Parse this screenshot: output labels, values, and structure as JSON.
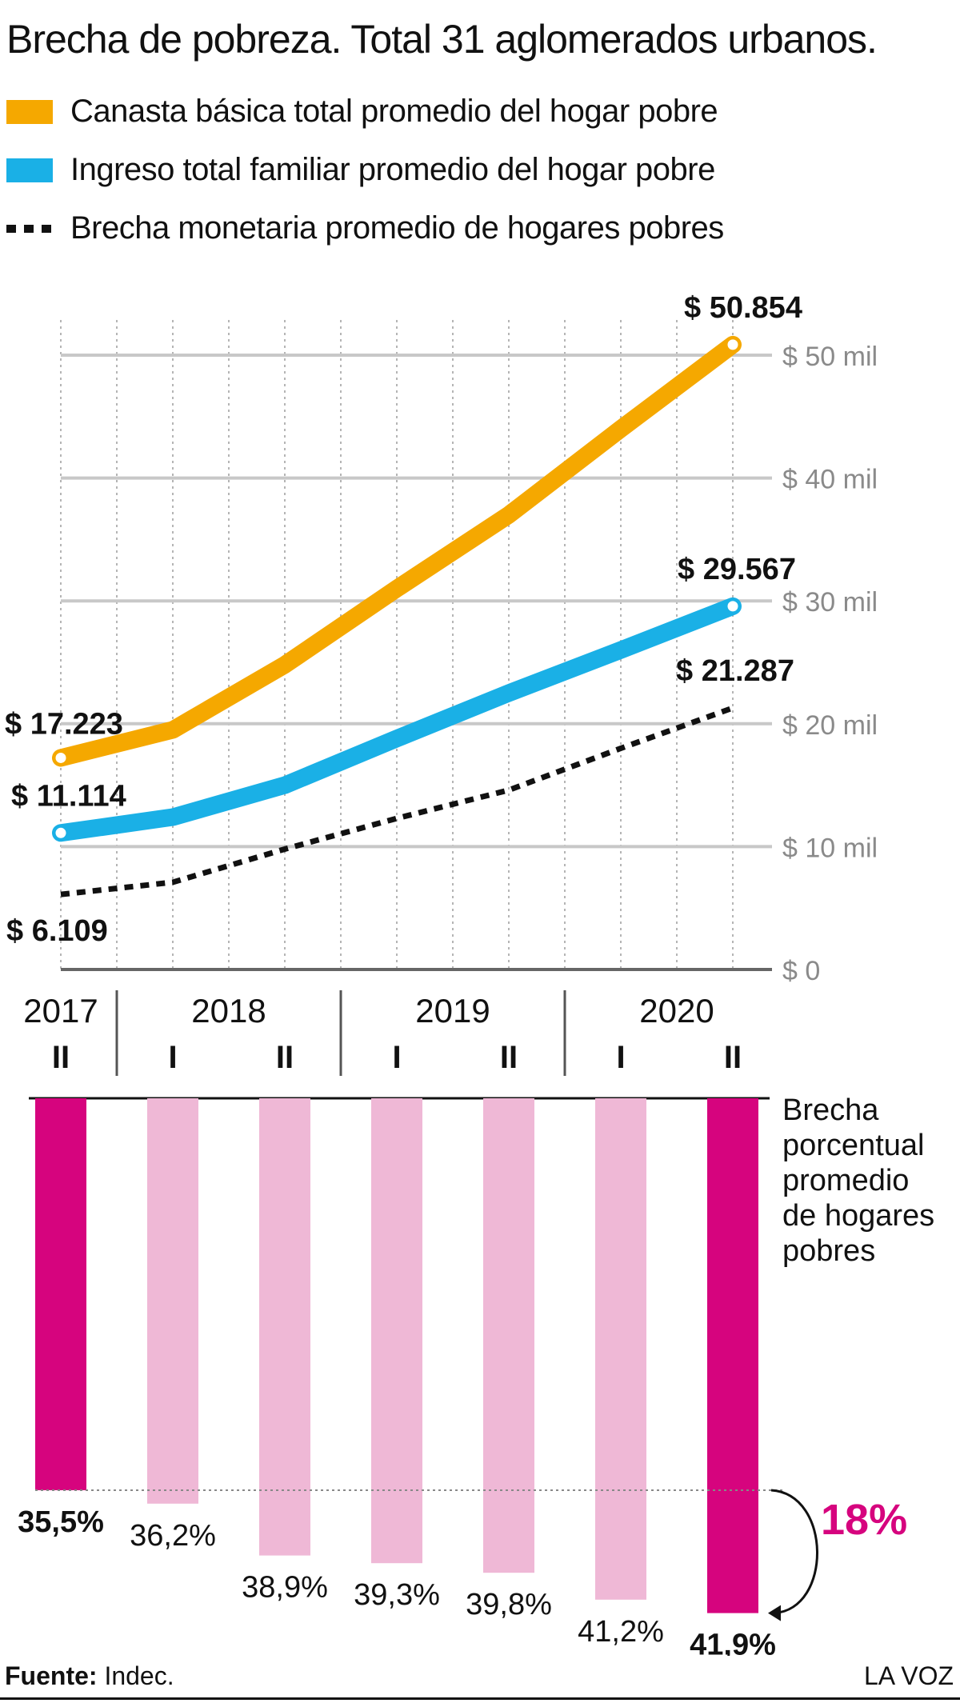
{
  "title": "Brecha de pobreza. Total 31 aglomerados urbanos.",
  "legend": [
    {
      "label": "Canasta básica total promedio del hogar pobre",
      "color": "#F5A800",
      "style": "solid"
    },
    {
      "label": "Ingreso total familiar promedio del hogar pobre",
      "color": "#1AB0E6",
      "style": "solid"
    },
    {
      "label": "Brecha monetaria promedio de hogares pobres",
      "color": "#111111",
      "style": "dashed"
    }
  ],
  "chart_data": [
    {
      "type": "line",
      "x": [
        "2017-II",
        "2018-I",
        "2018-II",
        "2019-I",
        "2019-II",
        "2020-I",
        "2020-II"
      ],
      "years": [
        "2017",
        "2018",
        "2019",
        "2020"
      ],
      "semesters": [
        "II",
        "I",
        "II",
        "I",
        "II",
        "I",
        "II"
      ],
      "ylim": [
        0,
        50000
      ],
      "yticks": [
        {
          "value": 0,
          "label": "$ 0"
        },
        {
          "value": 10000,
          "label": "$ 10 mil"
        },
        {
          "value": 20000,
          "label": "$ 20 mil"
        },
        {
          "value": 30000,
          "label": "$ 30 mil"
        },
        {
          "value": 40000,
          "label": "$ 40 mil"
        },
        {
          "value": 50000,
          "label": "$ 50 mil"
        }
      ],
      "grid": true,
      "series": [
        {
          "name": "Canasta básica total promedio del hogar pobre",
          "color": "#F5A800",
          "style": "solid",
          "values": [
            17223,
            19500,
            24800,
            31000,
            37000,
            44000,
            50854
          ]
        },
        {
          "name": "Ingreso total familiar promedio del hogar pobre",
          "color": "#1AB0E6",
          "style": "solid",
          "values": [
            11114,
            12400,
            15000,
            18800,
            22500,
            26000,
            29567
          ]
        },
        {
          "name": "Brecha monetaria promedio de hogares pobres",
          "color": "#111111",
          "style": "dashed",
          "values": [
            6109,
            7100,
            9800,
            12300,
            14600,
            18000,
            21287
          ]
        }
      ],
      "labels": {
        "canasta_first": "$ 17.223",
        "canasta_last": "$ 50.854",
        "ingreso_first": "$ 11.114",
        "ingreso_last": "$ 29.567",
        "brecha_first": "$ 6.109",
        "brecha_last": "$ 21.287"
      }
    },
    {
      "type": "bar",
      "title": "Brecha porcentual promedio de hogares pobres",
      "categories": [
        "2017-II",
        "2018-I",
        "2018-II",
        "2019-I",
        "2019-II",
        "2020-I",
        "2020-II"
      ],
      "values": [
        35.5,
        36.2,
        38.9,
        39.3,
        39.8,
        41.2,
        41.9
      ],
      "value_labels": [
        "35,5%",
        "36,2%",
        "38,9%",
        "39,3%",
        "39,8%",
        "41,2%",
        "41,9%"
      ],
      "highlight_color": "#D6047E",
      "muted_color": "#EFB8D6",
      "highlighted": [
        true,
        false,
        false,
        false,
        false,
        false,
        true
      ],
      "annotation": "18%"
    }
  ],
  "footer": {
    "source_label": "Fuente:",
    "source_value": " Indec.",
    "brand": "LA VOZ"
  }
}
